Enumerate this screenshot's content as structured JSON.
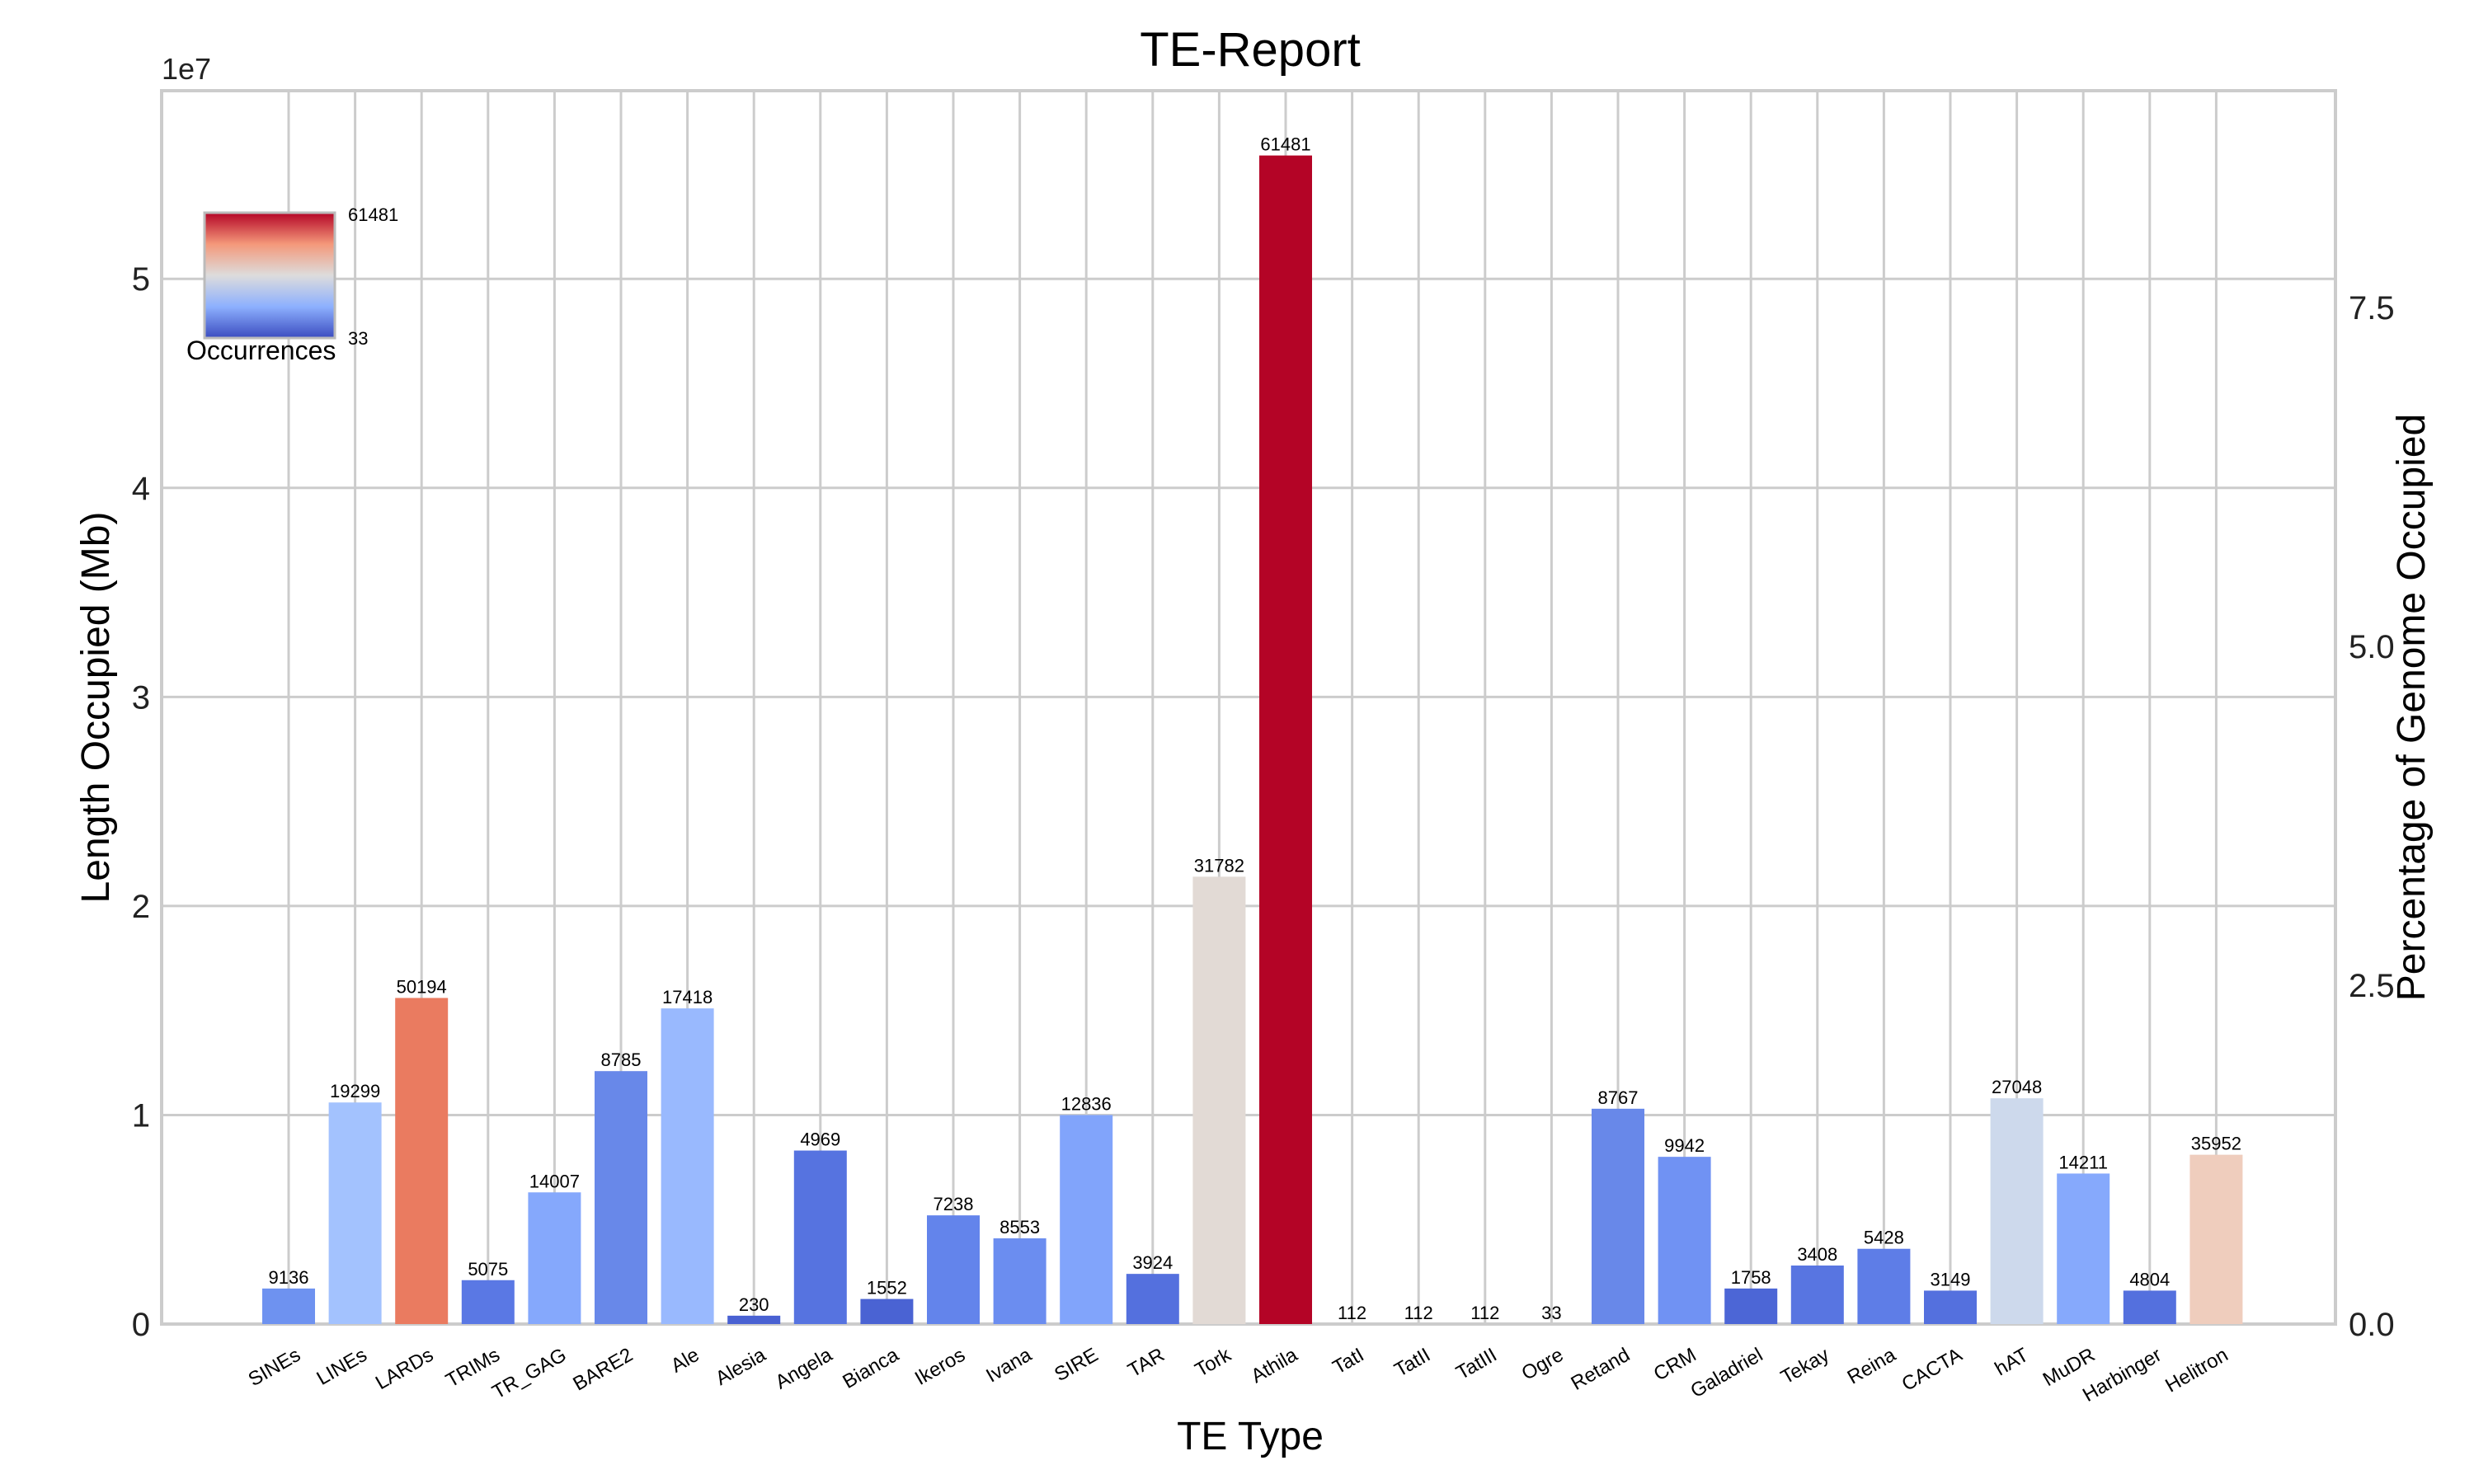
{
  "chart_data": {
    "type": "bar",
    "title": "TE-Report",
    "xlabel": "TE Type",
    "ylabel": "Length Occupied (Mb)",
    "y2label": "Percentage of Genome Occupied",
    "y_offset_text": "1e7",
    "ylim": [
      0,
      5.9
    ],
    "yticks": [
      "0",
      "1",
      "2",
      "3",
      "4",
      "5"
    ],
    "y2lim": [
      0,
      9.1
    ],
    "y2ticks": [
      "0.0",
      "2.5",
      "5.0",
      "7.5"
    ],
    "grid": true,
    "colorbar": {
      "title": "Occurrences",
      "max_label": "61481",
      "min_label": "33",
      "min": 33,
      "max": 61481,
      "colormap": "coolwarm",
      "placement": "top-left"
    },
    "categories": [
      "SINEs",
      "LINEs",
      "LARDs",
      "TRIMs",
      "TR_GAG",
      "BARE2",
      "Ale",
      "Alesia",
      "Angela",
      "Bianca",
      "Ikeros",
      "Ivana",
      "SIRE",
      "TAR",
      "Tork",
      "Athila",
      "TatI",
      "TatII",
      "TatIII",
      "Ogre",
      "Retand",
      "CRM",
      "Galadriel",
      "Tekay",
      "Reina",
      "CACTA",
      "hAT",
      "MuDR",
      "Harbinger",
      "Helitron"
    ],
    "values": [
      0.17,
      1.06,
      1.56,
      0.21,
      0.63,
      1.21,
      1.51,
      0.04,
      0.83,
      0.12,
      0.52,
      0.41,
      1.0,
      0.24,
      2.14,
      5.59,
      0,
      0,
      0,
      0,
      1.03,
      0.8,
      0.17,
      0.28,
      0.36,
      0.16,
      1.08,
      0.72,
      0.16,
      0.81
    ],
    "occurrences": [
      9136,
      19299,
      50194,
      5075,
      14007,
      8785,
      17418,
      230,
      4969,
      1552,
      7238,
      8553,
      12836,
      3924,
      31782,
      61481,
      112,
      112,
      112,
      33,
      8767,
      9942,
      1758,
      3408,
      5428,
      3149,
      27048,
      14211,
      4804,
      35952
    ],
    "data_labels": [
      "9136",
      "19299",
      "50194",
      "5075",
      "14007",
      "8785",
      "17418",
      "230",
      "4969",
      "1552",
      "7238",
      "8553",
      "12836",
      "3924",
      "31782",
      "61481",
      "112",
      "112",
      "112",
      "33",
      "8767",
      "9942",
      "1758",
      "3408",
      "5428",
      "3149",
      "27048",
      "14211",
      "4804",
      "35952"
    ],
    "colors": [
      "#6e92f0",
      "#a3c2fe",
      "#ea7b60",
      "#5a78e4",
      "#85a8fc",
      "#6888e9",
      "#99b9fe",
      "#4961d2",
      "#5673e0",
      "#4a63d3",
      "#6384eb",
      "#6b8df0",
      "#81a4fb",
      "#5470de",
      "#e2dad5",
      "#b40426",
      "#3b4cc0",
      "#3b4cc0",
      "#3b4cc0",
      "#3b4cc0",
      "#6888e9",
      "#7092f3",
      "#4c66d6",
      "#5875e1",
      "#5e7de7",
      "#5470de",
      "#cdd9ec",
      "#86a9fc",
      "#5470de",
      "#efcdbd"
    ]
  }
}
